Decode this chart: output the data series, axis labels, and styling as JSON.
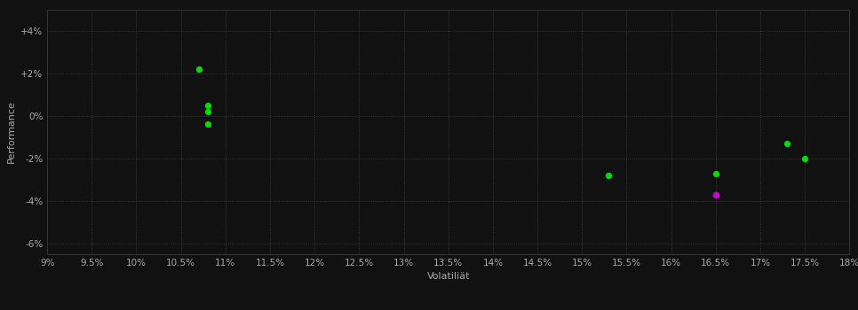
{
  "background_color": "#111111",
  "grid_color": "#444444",
  "text_color": "#aaaaaa",
  "xlabel": "Volatiliät",
  "ylabel": "Performance",
  "xlim": [
    0.09,
    0.18
  ],
  "ylim": [
    -0.065,
    0.05
  ],
  "xticks": [
    0.09,
    0.095,
    0.1,
    0.105,
    0.11,
    0.115,
    0.12,
    0.125,
    0.13,
    0.135,
    0.14,
    0.145,
    0.15,
    0.155,
    0.16,
    0.165,
    0.17,
    0.175,
    0.18
  ],
  "yticks": [
    -0.06,
    -0.04,
    -0.02,
    0.0,
    0.02,
    0.04
  ],
  "points_green": [
    [
      0.107,
      0.022
    ],
    [
      0.108,
      0.005
    ],
    [
      0.108,
      0.002
    ],
    [
      0.108,
      -0.004
    ],
    [
      0.153,
      -0.028
    ],
    [
      0.165,
      -0.027
    ],
    [
      0.173,
      -0.013
    ],
    [
      0.175,
      -0.02
    ]
  ],
  "points_magenta": [
    [
      0.165,
      -0.037
    ]
  ],
  "dot_size_green": 18,
  "dot_size_magenta": 22
}
